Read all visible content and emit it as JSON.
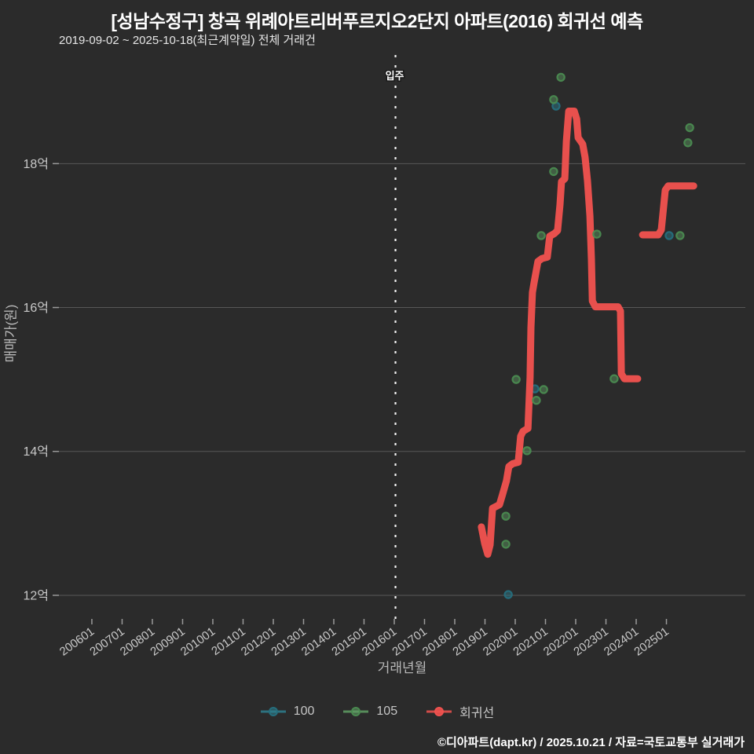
{
  "header": {
    "title": "[성남수정구] 창곡 위례아트리버푸르지오2단지 아파트(2016) 회귀선 예측",
    "subtitle": "2019-09-02 ~ 2025-10-18(최근계약일) 전체 거래건"
  },
  "footer": {
    "credit": "©디아파트(dapt.kr) / 2025.10.21 / 자료=국토교통부 실거래가"
  },
  "colors": {
    "background": "#2b2b2b",
    "grid": "#585858",
    "tick": "#9a9a9a",
    "axis_text": "#c9c9c9",
    "title_text": "#ffffff",
    "annotation_line": "#f2f2f2",
    "series_100": "#2e7f8e",
    "series_100_stroke": "#256e7d",
    "series_105": "#5f9e64",
    "series_105_stroke": "#4a8a50",
    "regression": "#f0524f"
  },
  "chart_data": {
    "type": "scatter",
    "title": "[성남수정구] 창곡 위례아트리버푸르지오2단지 아파트(2016) 회귀선 예측",
    "subtitle": "2019-09-02 ~ 2025-10-18(최근계약일) 전체 거래건",
    "xlabel": "거래년월",
    "ylabel": "매매가(원)",
    "xlim": [
      2004.91,
      2027.61
    ],
    "ylim": [
      11.65,
      19.51
    ],
    "grid": true,
    "legend_position": "bottom",
    "x_ticks": [
      {
        "x": 2006,
        "label": "200601"
      },
      {
        "x": 2007,
        "label": "200701"
      },
      {
        "x": 2008,
        "label": "200801"
      },
      {
        "x": 2009,
        "label": "200901"
      },
      {
        "x": 2010,
        "label": "201001"
      },
      {
        "x": 2011,
        "label": "201101"
      },
      {
        "x": 2012,
        "label": "201201"
      },
      {
        "x": 2013,
        "label": "201301"
      },
      {
        "x": 2014,
        "label": "201401"
      },
      {
        "x": 2015,
        "label": "201501"
      },
      {
        "x": 2016,
        "label": "201601"
      },
      {
        "x": 2017,
        "label": "201701"
      },
      {
        "x": 2018,
        "label": "201801"
      },
      {
        "x": 2019,
        "label": "201901"
      },
      {
        "x": 2020,
        "label": "202001"
      },
      {
        "x": 2021,
        "label": "202101"
      },
      {
        "x": 2022,
        "label": "202201"
      },
      {
        "x": 2023,
        "label": "202301"
      },
      {
        "x": 2024,
        "label": "202401"
      },
      {
        "x": 2025,
        "label": "202501"
      }
    ],
    "y_ticks": [
      {
        "y": 12,
        "label": "12억"
      },
      {
        "y": 14,
        "label": "14억"
      },
      {
        "y": 16,
        "label": "16억"
      },
      {
        "y": 18,
        "label": "18억"
      }
    ],
    "annotation": {
      "label": "입주",
      "x": 2016.04
    },
    "series": [
      {
        "name": "100",
        "type": "scatter",
        "color": "#2e7f8e",
        "stroke": "#256e7d",
        "points": [
          [
            2021.35,
            18.8
          ],
          [
            2025.09,
            17.0
          ],
          [
            2020.65,
            14.87
          ],
          [
            2019.77,
            12.01
          ]
        ]
      },
      {
        "name": "105",
        "type": "scatter",
        "color": "#5f9e64",
        "stroke": "#4a8a50",
        "points": [
          [
            2021.51,
            19.2
          ],
          [
            2021.27,
            18.89
          ],
          [
            2021.27,
            17.89
          ],
          [
            2020.86,
            17.0
          ],
          [
            2022.7,
            17.02
          ],
          [
            2025.45,
            17.0
          ],
          [
            2025.77,
            18.5
          ],
          [
            2025.71,
            18.29
          ],
          [
            2020.03,
            15.0
          ],
          [
            2023.27,
            15.01
          ],
          [
            2020.94,
            14.86
          ],
          [
            2020.7,
            14.71
          ],
          [
            2020.39,
            14.01
          ],
          [
            2019.69,
            13.1
          ],
          [
            2019.69,
            12.71
          ]
        ]
      },
      {
        "name": "회귀선",
        "type": "line",
        "color": "#f0524f",
        "width": 9,
        "segments": [
          [
            [
              2018.88,
              12.95
            ],
            [
              2018.99,
              12.72
            ],
            [
              2019.09,
              12.57
            ],
            [
              2019.17,
              12.7
            ],
            [
              2019.25,
              13.21
            ],
            [
              2019.48,
              13.26
            ],
            [
              2019.58,
              13.4
            ],
            [
              2019.71,
              13.59
            ],
            [
              2019.79,
              13.79
            ],
            [
              2019.92,
              13.83
            ],
            [
              2020.1,
              13.85
            ],
            [
              2020.18,
              14.21
            ],
            [
              2020.26,
              14.28
            ],
            [
              2020.42,
              14.32
            ],
            [
              2020.49,
              15.03
            ],
            [
              2020.52,
              15.72
            ],
            [
              2020.57,
              16.21
            ],
            [
              2020.62,
              16.34
            ],
            [
              2020.75,
              16.64
            ],
            [
              2020.88,
              16.68
            ],
            [
              2021.06,
              16.7
            ],
            [
              2021.14,
              16.99
            ],
            [
              2021.3,
              17.03
            ],
            [
              2021.4,
              17.07
            ],
            [
              2021.48,
              17.43
            ],
            [
              2021.53,
              17.75
            ],
            [
              2021.64,
              17.79
            ],
            [
              2021.69,
              18.31
            ],
            [
              2021.77,
              18.73
            ],
            [
              2021.95,
              18.73
            ],
            [
              2022.03,
              18.62
            ],
            [
              2022.08,
              18.36
            ],
            [
              2022.23,
              18.27
            ],
            [
              2022.31,
              18.09
            ],
            [
              2022.39,
              17.76
            ],
            [
              2022.47,
              17.27
            ],
            [
              2022.52,
              16.67
            ],
            [
              2022.55,
              16.09
            ],
            [
              2022.65,
              16.01
            ],
            [
              2023.4,
              16.01
            ],
            [
              2023.48,
              15.95
            ],
            [
              2023.51,
              15.08
            ],
            [
              2023.61,
              15.01
            ],
            [
              2024.05,
              15.01
            ]
          ],
          [
            [
              2024.21,
              17.01
            ],
            [
              2024.73,
              17.01
            ],
            [
              2024.83,
              17.08
            ],
            [
              2024.96,
              17.63
            ],
            [
              2025.06,
              17.69
            ],
            [
              2025.9,
              17.69
            ]
          ]
        ]
      }
    ]
  }
}
